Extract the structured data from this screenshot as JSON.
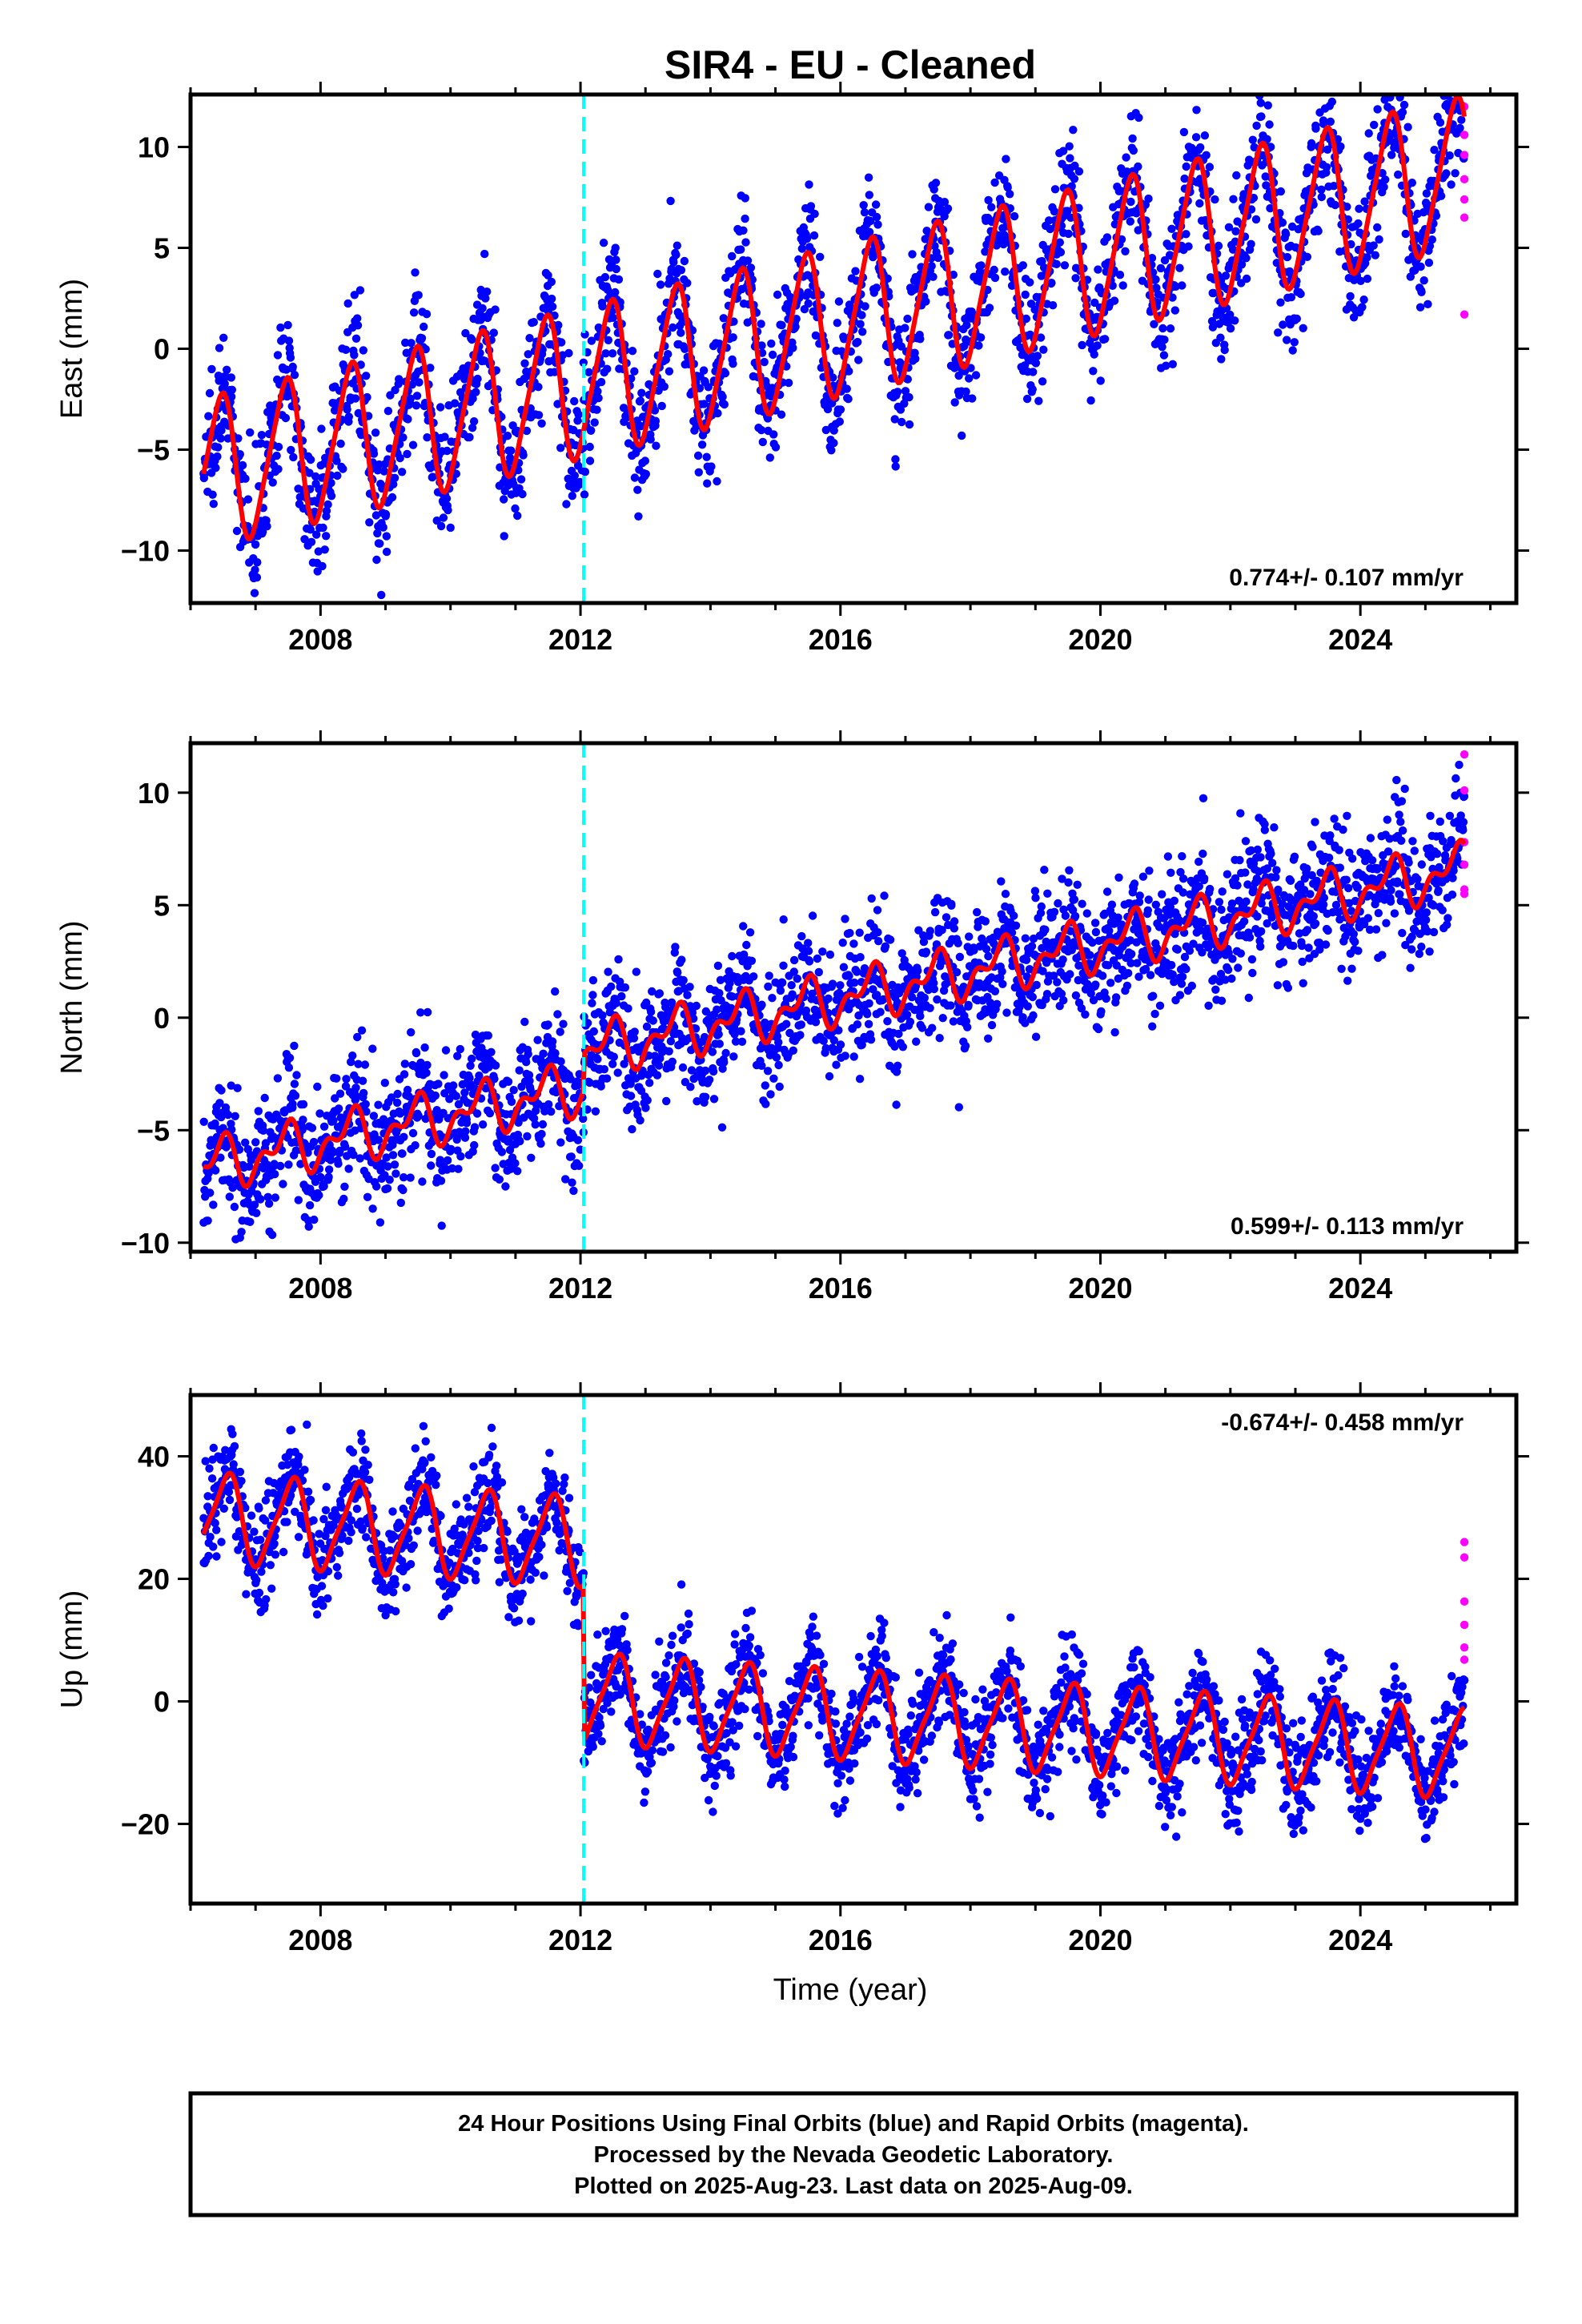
{
  "title": "SIR4  - EU - Cleaned",
  "xlabel": "Time (year)",
  "colors": {
    "final_orbits": "#0000ff",
    "rapid_orbits": "#ff00ff",
    "model": "#ff0000",
    "event_line": "#00ffff",
    "frame": "#000000"
  },
  "footer": {
    "line1": "24 Hour Positions Using Final Orbits (blue) and Rapid Orbits (magenta).",
    "line2": "Processed by the Nevada Geodetic Laboratory.",
    "line3": "Plotted on 2025-Aug-23. Last data on 2025-Aug-09."
  },
  "chart_data": [
    {
      "type": "scatter",
      "component": "East",
      "ylabel": "East (mm)",
      "rate_label": "0.774+/- 0.107 mm/yr",
      "xlim": [
        2006.0,
        2026.4
      ],
      "ylim": [
        -12.6,
        12.6
      ],
      "xticks": [
        2008,
        2012,
        2016,
        2020,
        2024
      ],
      "yticks": [
        -10,
        -5,
        0,
        5,
        10
      ],
      "event_line_x": 2012.05,
      "data_span": [
        2006.2,
        2025.6
      ],
      "model": {
        "trend_start": -6.2,
        "rate": 0.774,
        "annual_amplitude": 3.6,
        "annual_phase_year": 0.45,
        "semiannual_amplitude": 0.6,
        "scatter_sd": 1.6
      },
      "series": [
        {
          "name": "Final Orbits",
          "color": "#0000ff",
          "marker": "dot"
        },
        {
          "name": "Rapid Orbits",
          "color": "#ff00ff",
          "marker": "dot",
          "x": [
            2025.6,
            2025.6,
            2025.6,
            2025.6,
            2025.6,
            2025.6,
            2025.6
          ],
          "y": [
            12.0,
            10.6,
            9.6,
            8.4,
            7.4,
            6.5,
            1.7
          ]
        },
        {
          "name": "Model",
          "color": "#ff0000",
          "line": true
        }
      ]
    },
    {
      "type": "scatter",
      "component": "North",
      "ylabel": "North (mm)",
      "rate_label": "0.599+/- 0.113 mm/yr",
      "xlim": [
        2006.0,
        2026.4
      ],
      "ylim": [
        -10.4,
        12.2
      ],
      "xticks": [
        2008,
        2012,
        2016,
        2020,
        2024
      ],
      "yticks": [
        -10,
        -5,
        0,
        5,
        10
      ],
      "event_line_x": 2012.05,
      "data_span": [
        2006.2,
        2025.6
      ],
      "model": {
        "trend_start": -6.6,
        "rate": 0.599,
        "annual_amplitude": 0.9,
        "annual_phase_year": 0.45,
        "semiannual_amplitude": 0.6,
        "scatter_sd": 1.4,
        "offset_at_event": 1.6
      },
      "series": [
        {
          "name": "Final Orbits",
          "color": "#0000ff",
          "marker": "dot"
        },
        {
          "name": "Rapid Orbits",
          "color": "#ff00ff",
          "marker": "dot",
          "x": [
            2025.6,
            2025.6,
            2025.6,
            2025.6,
            2025.6,
            2025.6
          ],
          "y": [
            11.7,
            10.1,
            7.8,
            6.8,
            5.7,
            5.5
          ]
        },
        {
          "name": "Model",
          "color": "#ff0000",
          "line": true
        }
      ]
    },
    {
      "type": "scatter",
      "component": "Up",
      "ylabel": "Up (mm)",
      "rate_label": "-0.674+/- 0.458 mm/yr",
      "xlim": [
        2006.0,
        2026.4
      ],
      "ylim": [
        -33.0,
        50.0
      ],
      "xticks": [
        2008,
        2012,
        2016,
        2020,
        2024
      ],
      "yticks": [
        -20,
        0,
        20,
        40
      ],
      "event_line_x": 2012.05,
      "data_span": [
        2006.2,
        2025.6
      ],
      "model": {
        "trend_start": 30.0,
        "rate": -0.674,
        "annual_amplitude": 7.0,
        "annual_phase_year": 0.55,
        "semiannual_amplitude": 1.5,
        "scatter_sd": 4.0,
        "offset_at_event": -25.5
      },
      "series": [
        {
          "name": "Final Orbits",
          "color": "#0000ff",
          "marker": "dot"
        },
        {
          "name": "Rapid Orbits",
          "color": "#ff00ff",
          "marker": "dot",
          "x": [
            2025.6,
            2025.6,
            2025.6,
            2025.6,
            2025.6,
            2025.6
          ],
          "y": [
            26.0,
            23.5,
            16.3,
            12.5,
            8.8,
            6.8
          ]
        },
        {
          "name": "Model",
          "color": "#ff0000",
          "line": true
        }
      ]
    }
  ]
}
